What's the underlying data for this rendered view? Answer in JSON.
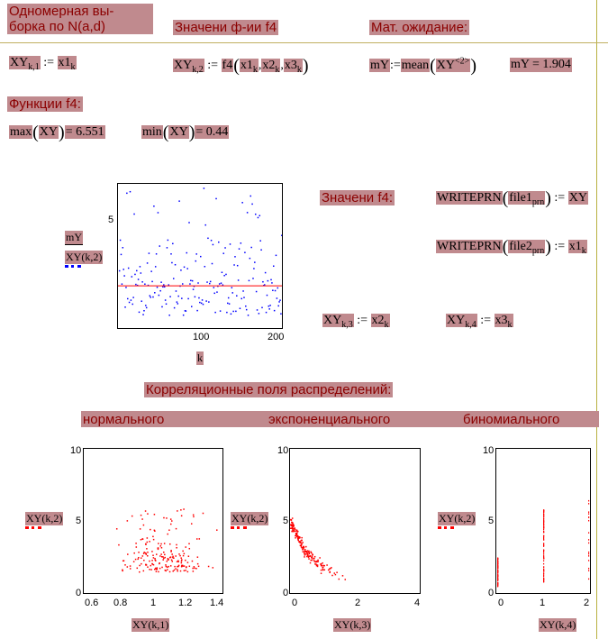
{
  "headers": {
    "sample_line1": "Одномерная вы-",
    "sample_line2": "борка по N(a,d)",
    "f4_values": "Значени ф-ии f4",
    "expectation": "Мат. ожидание:",
    "functions": "Функции f4:",
    "f4_values_2": "Значени f4:",
    "correlation": "Корреляционные поля распределений:",
    "normal": "нормального",
    "exponential": "экспоненциального",
    "binomial": "биномиального"
  },
  "formulas": {
    "xy1_lhs": "XY",
    "xy1_sub": "k,1",
    "xy1_rhs": "x1",
    "xy1_rhs_sub": "k",
    "xy2_lhs": "XY",
    "xy2_sub": "k,2",
    "xy2_rhs_fn": "f4",
    "xy2_arg1": "x1",
    "xy2_arg2": "x2",
    "xy2_arg3": "x3",
    "arg_sub": "k",
    "my_lhs": "mY",
    "my_fn": "mean",
    "my_arg": "XY",
    "my_sup": "<2>",
    "my_result": "mY = 1.904",
    "max_fn": "max",
    "max_arg": "XY",
    "max_val": "= 6.551",
    "min_fn": "min",
    "min_arg": "XY",
    "min_val": "= 0.44",
    "write1_fn": "WRITEPRN",
    "write1_arg": "file1",
    "write1_sub": "prn",
    "write1_rhs": "XY",
    "write2_fn": "WRITEPRN",
    "write2_arg": "file2",
    "write2_sub": "prn",
    "write2_rhs": "x1",
    "write2_rhs_sub": "k",
    "xy3_lhs": "XY",
    "xy3_sub": "k,3",
    "xy3_rhs": "x2",
    "xy3_rhs_sub": "k",
    "xy4_lhs": "XY",
    "xy4_sub": "k,4",
    "xy4_rhs": "x3",
    "xy4_rhs_sub": "k",
    "assign": ":="
  },
  "colors": {
    "highlight": "#c08a8e",
    "heading": "#8b0000",
    "blue_points": "#0000ff",
    "red_points": "#ff0000"
  },
  "chart_data": [
    {
      "type": "scatter",
      "id": "main",
      "xlabel": "k",
      "ylabel_1": "mY",
      "ylabel_2": "XY(k,2)",
      "xlim": [
        0,
        200
      ],
      "ylim": [
        0,
        6.5
      ],
      "xticks": [
        "100",
        "200"
      ],
      "yticks": [
        "5"
      ],
      "mean_line": 1.904,
      "series_color": "#0000ff",
      "points_note": "200 blue points, XY(k,2) for k=1..200"
    },
    {
      "type": "scatter",
      "id": "normal",
      "xlabel": "XY(k,1)",
      "ylabel": "XY(k,2)",
      "xlim": [
        0.5,
        1.4
      ],
      "ylim": [
        0,
        10
      ],
      "xticks": [
        "0.6",
        "0.8",
        "1",
        "1.2",
        "1.4"
      ],
      "yticks": [
        "0",
        "5",
        "10"
      ]
    },
    {
      "type": "scatter",
      "id": "exponential",
      "xlabel": "XY(k,3)",
      "ylabel": "XY(k,2)",
      "xlim": [
        0,
        4
      ],
      "ylim": [
        0,
        10
      ],
      "xticks": [
        "0",
        "2",
        "4"
      ],
      "yticks": [
        "0",
        "5",
        "10"
      ]
    },
    {
      "type": "scatter",
      "id": "binomial",
      "xlabel": "XY(k,4)",
      "ylabel": "XY(k,2)",
      "xlim": [
        0,
        2
      ],
      "ylim": [
        0,
        10
      ],
      "xticks": [
        "0",
        "1",
        "2"
      ],
      "yticks": [
        "0",
        "5",
        "10"
      ]
    }
  ]
}
